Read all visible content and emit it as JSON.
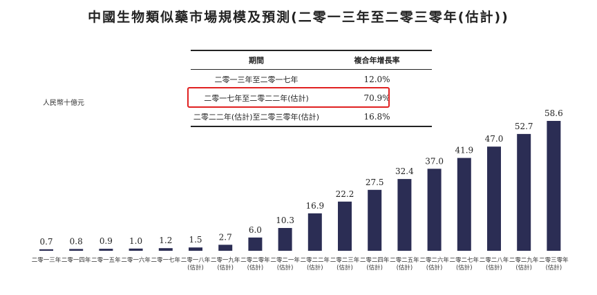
{
  "chart_data": {
    "type": "bar",
    "title": "中國生物類似藥市場規模及預測(二零一三年至二零三零年(估計))",
    "ylabel": "人民幣十億元",
    "categories": [
      "二零一三年",
      "二零一四年",
      "二零一五年",
      "二零一六年",
      "二零一七年",
      "二零一八年\n(估計)",
      "二零一九年\n(估計)",
      "二零二零年\n(估計)",
      "二零二一年\n(估計)",
      "二零二二年\n(估計)",
      "二零二三年\n(估計)",
      "二零二四年\n(估計)",
      "二零二五年\n(估計)",
      "二零二六年\n(估計)",
      "二零二七年\n(估計)",
      "二零二八年\n(估計)",
      "二零二九年\n(估計)",
      "二零三零年\n(估計)"
    ],
    "values": [
      0.7,
      0.8,
      0.9,
      1.0,
      1.2,
      1.5,
      2.7,
      6.0,
      10.3,
      16.9,
      22.2,
      27.5,
      32.4,
      37.0,
      41.9,
      47.0,
      52.7,
      58.6
    ],
    "value_labels": [
      "0.7",
      "0.8",
      "0.9",
      "1.0",
      "1.2",
      "1.5",
      "2.7",
      "6.0",
      "10.3",
      "16.9",
      "22.2",
      "27.5",
      "32.4",
      "37.0",
      "41.9",
      "47.0",
      "52.7",
      "58.6"
    ],
    "ylim": [
      0,
      58.6
    ],
    "grid": false,
    "legend": "none",
    "bar_color": "#2b2d54",
    "cagr_table": {
      "headers": [
        "期間",
        "複合年增長率"
      ],
      "rows": [
        {
          "period": "二零一三年至二零一七年",
          "cagr": "12.0%"
        },
        {
          "period": "二零一七年至二零二二年(估計)",
          "cagr": "70.9%"
        },
        {
          "period": "二零二二年(估計)至二零三零年(估計)",
          "cagr": "16.8%"
        }
      ],
      "highlight_row": 1,
      "highlight_color": "#e02020"
    }
  }
}
